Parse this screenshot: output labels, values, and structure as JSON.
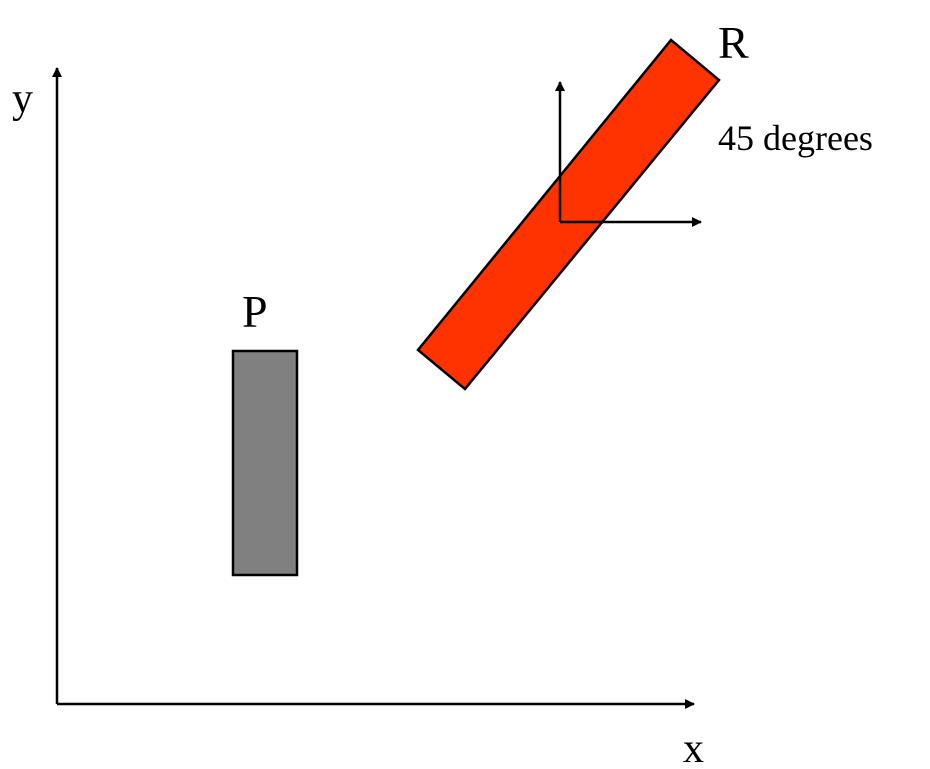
{
  "axes": {
    "x_label": "x",
    "y_label": "y"
  },
  "shapes": {
    "p": {
      "label": "P",
      "fill": "#808080"
    },
    "r": {
      "label": "R",
      "fill": "#ff3300",
      "rotation_label": "45 degrees"
    }
  },
  "colors": {
    "stroke": "#000000",
    "background": "#ffffff"
  }
}
